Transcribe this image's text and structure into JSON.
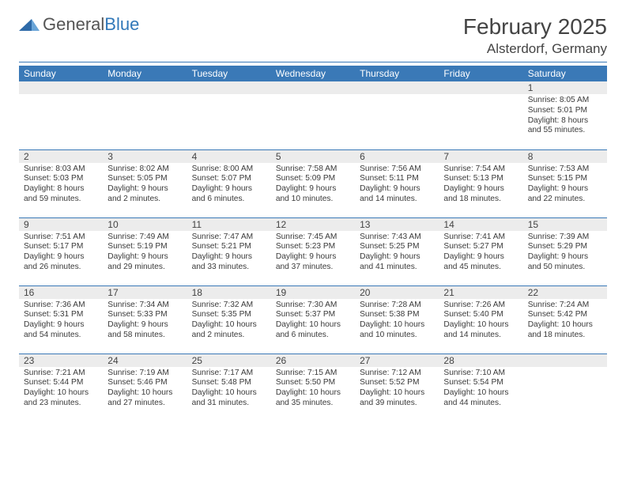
{
  "brand": {
    "part1": "General",
    "part2": "Blue"
  },
  "header": {
    "title": "February 2025",
    "location": "Alsterdorf, Germany"
  },
  "colors": {
    "accent": "#3a79b7",
    "header_bg": "#3a79b7",
    "daynum_bg": "#ececec",
    "text": "#3a3a3a",
    "bg": "#ffffff"
  },
  "weekdays": [
    "Sunday",
    "Monday",
    "Tuesday",
    "Wednesday",
    "Thursday",
    "Friday",
    "Saturday"
  ],
  "weeks": [
    [
      null,
      null,
      null,
      null,
      null,
      null,
      {
        "n": "1",
        "sunrise": "8:05 AM",
        "sunset": "5:01 PM",
        "daylight": "8 hours and 55 minutes."
      }
    ],
    [
      {
        "n": "2",
        "sunrise": "8:03 AM",
        "sunset": "5:03 PM",
        "daylight": "8 hours and 59 minutes."
      },
      {
        "n": "3",
        "sunrise": "8:02 AM",
        "sunset": "5:05 PM",
        "daylight": "9 hours and 2 minutes."
      },
      {
        "n": "4",
        "sunrise": "8:00 AM",
        "sunset": "5:07 PM",
        "daylight": "9 hours and 6 minutes."
      },
      {
        "n": "5",
        "sunrise": "7:58 AM",
        "sunset": "5:09 PM",
        "daylight": "9 hours and 10 minutes."
      },
      {
        "n": "6",
        "sunrise": "7:56 AM",
        "sunset": "5:11 PM",
        "daylight": "9 hours and 14 minutes."
      },
      {
        "n": "7",
        "sunrise": "7:54 AM",
        "sunset": "5:13 PM",
        "daylight": "9 hours and 18 minutes."
      },
      {
        "n": "8",
        "sunrise": "7:53 AM",
        "sunset": "5:15 PM",
        "daylight": "9 hours and 22 minutes."
      }
    ],
    [
      {
        "n": "9",
        "sunrise": "7:51 AM",
        "sunset": "5:17 PM",
        "daylight": "9 hours and 26 minutes."
      },
      {
        "n": "10",
        "sunrise": "7:49 AM",
        "sunset": "5:19 PM",
        "daylight": "9 hours and 29 minutes."
      },
      {
        "n": "11",
        "sunrise": "7:47 AM",
        "sunset": "5:21 PM",
        "daylight": "9 hours and 33 minutes."
      },
      {
        "n": "12",
        "sunrise": "7:45 AM",
        "sunset": "5:23 PM",
        "daylight": "9 hours and 37 minutes."
      },
      {
        "n": "13",
        "sunrise": "7:43 AM",
        "sunset": "5:25 PM",
        "daylight": "9 hours and 41 minutes."
      },
      {
        "n": "14",
        "sunrise": "7:41 AM",
        "sunset": "5:27 PM",
        "daylight": "9 hours and 45 minutes."
      },
      {
        "n": "15",
        "sunrise": "7:39 AM",
        "sunset": "5:29 PM",
        "daylight": "9 hours and 50 minutes."
      }
    ],
    [
      {
        "n": "16",
        "sunrise": "7:36 AM",
        "sunset": "5:31 PM",
        "daylight": "9 hours and 54 minutes."
      },
      {
        "n": "17",
        "sunrise": "7:34 AM",
        "sunset": "5:33 PM",
        "daylight": "9 hours and 58 minutes."
      },
      {
        "n": "18",
        "sunrise": "7:32 AM",
        "sunset": "5:35 PM",
        "daylight": "10 hours and 2 minutes."
      },
      {
        "n": "19",
        "sunrise": "7:30 AM",
        "sunset": "5:37 PM",
        "daylight": "10 hours and 6 minutes."
      },
      {
        "n": "20",
        "sunrise": "7:28 AM",
        "sunset": "5:38 PM",
        "daylight": "10 hours and 10 minutes."
      },
      {
        "n": "21",
        "sunrise": "7:26 AM",
        "sunset": "5:40 PM",
        "daylight": "10 hours and 14 minutes."
      },
      {
        "n": "22",
        "sunrise": "7:24 AM",
        "sunset": "5:42 PM",
        "daylight": "10 hours and 18 minutes."
      }
    ],
    [
      {
        "n": "23",
        "sunrise": "7:21 AM",
        "sunset": "5:44 PM",
        "daylight": "10 hours and 23 minutes."
      },
      {
        "n": "24",
        "sunrise": "7:19 AM",
        "sunset": "5:46 PM",
        "daylight": "10 hours and 27 minutes."
      },
      {
        "n": "25",
        "sunrise": "7:17 AM",
        "sunset": "5:48 PM",
        "daylight": "10 hours and 31 minutes."
      },
      {
        "n": "26",
        "sunrise": "7:15 AM",
        "sunset": "5:50 PM",
        "daylight": "10 hours and 35 minutes."
      },
      {
        "n": "27",
        "sunrise": "7:12 AM",
        "sunset": "5:52 PM",
        "daylight": "10 hours and 39 minutes."
      },
      {
        "n": "28",
        "sunrise": "7:10 AM",
        "sunset": "5:54 PM",
        "daylight": "10 hours and 44 minutes."
      },
      null
    ]
  ],
  "labels": {
    "sunrise": "Sunrise:",
    "sunset": "Sunset:",
    "daylight": "Daylight:"
  }
}
